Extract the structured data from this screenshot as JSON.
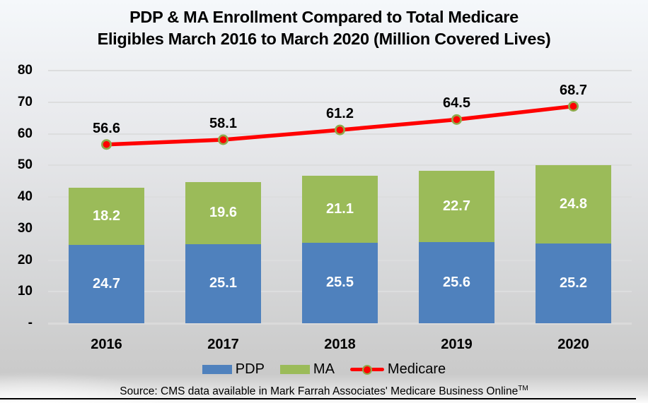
{
  "title_lines": [
    "PDP & MA Enrollment Compared to Total Medicare",
    "Eligibles March 2016 to March 2020 (Million Covered Lives)"
  ],
  "chart_data": {
    "type": "stacked-bar-with-line",
    "categories": [
      "2016",
      "2017",
      "2018",
      "2019",
      "2020"
    ],
    "series": [
      {
        "name": "PDP",
        "type": "bar",
        "color": "#4f81bd",
        "values": [
          24.7,
          25.1,
          25.5,
          25.6,
          25.2
        ]
      },
      {
        "name": "MA",
        "type": "bar",
        "color": "#9bbb59",
        "values": [
          18.2,
          19.6,
          21.1,
          22.7,
          24.8
        ]
      },
      {
        "name": "Medicare",
        "type": "line",
        "color": "#ff0000",
        "marker_fill": "#ff0000",
        "marker_edge": "#8faa4b",
        "values": [
          56.6,
          58.1,
          61.2,
          64.5,
          68.7
        ]
      }
    ],
    "ylim": [
      0,
      80
    ],
    "ytick_values": [
      0,
      10,
      20,
      30,
      40,
      50,
      60,
      70,
      80
    ],
    "ytick_labels": [
      "-",
      "10",
      "20",
      "30",
      "40",
      "50",
      "60",
      "70",
      "80"
    ],
    "grid": true,
    "legend_position": "bottom",
    "bar_label_color": "#ffffff",
    "line_label_color": "#000000"
  },
  "source": {
    "text": "Source: CMS data available  in Mark Farrah Associates' Medicare Business Online",
    "tm": "TM"
  }
}
